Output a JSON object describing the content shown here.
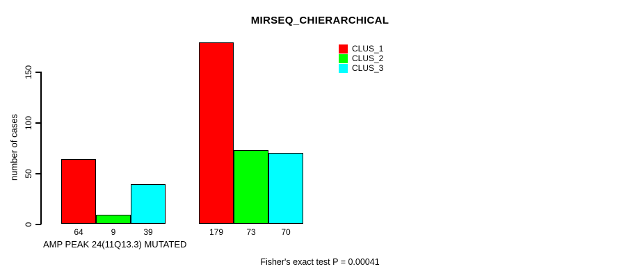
{
  "chart": {
    "title": "MIRSEQ_CHIERARCHICAL",
    "ylabel": "number of cases",
    "group1_label": "AMP PEAK 24(11Q13.3) MUTATED",
    "annotation": "Fisher's exact test P = 0.00041"
  },
  "chart_data": {
    "type": "bar",
    "title": "MIRSEQ_CHIERARCHICAL",
    "xlabel": "",
    "ylabel": "number of cases",
    "ylim": [
      0,
      185
    ],
    "yticks": [
      0,
      50,
      100,
      150
    ],
    "grid": false,
    "legend_position": "top-right",
    "categories": [
      "AMP PEAK 24(11Q13.3) MUTATED",
      ""
    ],
    "series": [
      {
        "name": "CLUS_1",
        "color": "#ff0000",
        "values": [
          64,
          179
        ]
      },
      {
        "name": "CLUS_2",
        "color": "#00ff00",
        "values": [
          9,
          73
        ]
      },
      {
        "name": "CLUS_3",
        "color": "#00ffff",
        "values": [
          39,
          70
        ]
      }
    ],
    "bar_value_labels": [
      [
        64,
        9,
        39
      ],
      [
        179,
        73,
        70
      ]
    ],
    "annotation": "Fisher's exact test P = 0.00041"
  }
}
